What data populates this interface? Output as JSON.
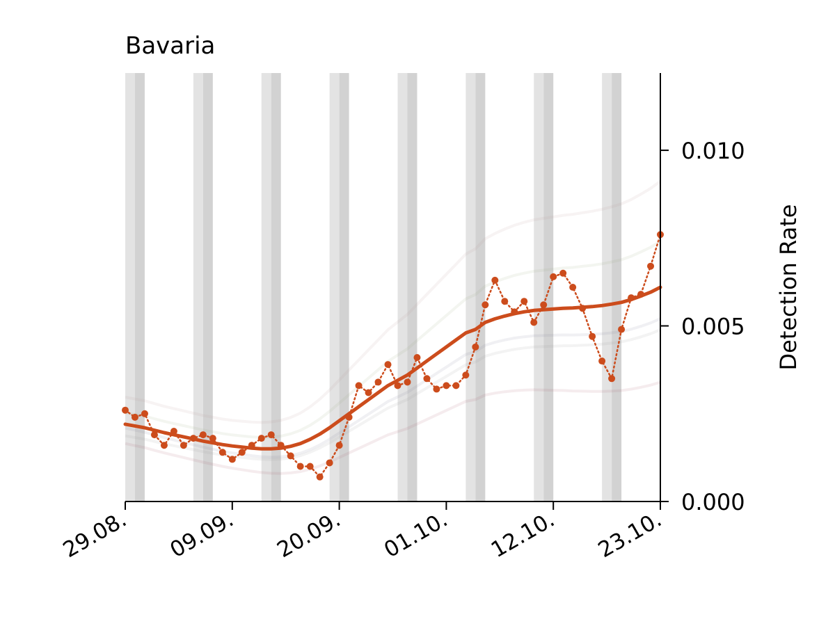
{
  "chart_data": {
    "type": "line",
    "title": "Bavaria",
    "ylabel": "Detection Rate",
    "xlabel": "",
    "x_tick_labels": [
      "29.08.",
      "09.09.",
      "20.09.",
      "01.10.",
      "12.10.",
      "23.10."
    ],
    "y_tick_labels": [
      "0.000",
      "0.005",
      "0.010"
    ],
    "y_ticks": [
      0,
      0.005,
      0.01
    ],
    "xlim": [
      0,
      55
    ],
    "ylim": [
      0,
      0.0122
    ],
    "weekend_days": [
      0,
      1,
      7,
      8,
      14,
      15,
      21,
      22,
      28,
      29,
      35,
      36,
      42,
      43,
      49,
      50
    ],
    "colors": {
      "main": "#cc4c1c",
      "weekend_light": "#e3e3e3",
      "weekend_dark": "#d2d2d2",
      "background_lines": [
        "#b06070",
        "#8080a0",
        "#a0b080",
        "#c0a0a0",
        "#9aa0a0"
      ]
    },
    "series": [
      {
        "role": "daily",
        "values": [
          0.0026,
          0.0024,
          0.0025,
          0.0019,
          0.0016,
          0.002,
          0.0016,
          0.0018,
          0.0019,
          0.0018,
          0.0014,
          0.0012,
          0.0014,
          0.0016,
          0.0018,
          0.0019,
          0.0016,
          0.0013,
          0.001,
          0.001,
          0.0007,
          0.0011,
          0.0016,
          0.0024,
          0.0033,
          0.0031,
          0.0034,
          0.0039,
          0.0033,
          0.0034,
          0.0041,
          0.0035,
          0.0032,
          0.0033,
          0.0033,
          0.0036,
          0.0044,
          0.0056,
          0.0063,
          0.0057,
          0.0054,
          0.0057,
          0.0051,
          0.0056,
          0.0064,
          0.0065,
          0.0061,
          0.0055,
          0.0047,
          0.004,
          0.0035,
          0.0049,
          0.0058,
          0.0059,
          0.0067,
          0.0076
        ]
      },
      {
        "role": "trend",
        "values": [
          0.0022,
          0.00215,
          0.0021,
          0.00203,
          0.00196,
          0.0019,
          0.00184,
          0.00178,
          0.00172,
          0.00167,
          0.00162,
          0.00158,
          0.00155,
          0.00152,
          0.0015,
          0.0015,
          0.00152,
          0.00157,
          0.00165,
          0.00177,
          0.00192,
          0.0021,
          0.0023,
          0.0025,
          0.0027,
          0.0029,
          0.0031,
          0.0033,
          0.00345,
          0.0036,
          0.0038,
          0.004,
          0.0042,
          0.0044,
          0.0046,
          0.0048,
          0.0049,
          0.0051,
          0.0052,
          0.00528,
          0.00535,
          0.0054,
          0.00544,
          0.00546,
          0.00548,
          0.0055,
          0.00551,
          0.00553,
          0.00555,
          0.00558,
          0.00562,
          0.00567,
          0.00575,
          0.00585,
          0.00596,
          0.0061
        ]
      }
    ]
  }
}
